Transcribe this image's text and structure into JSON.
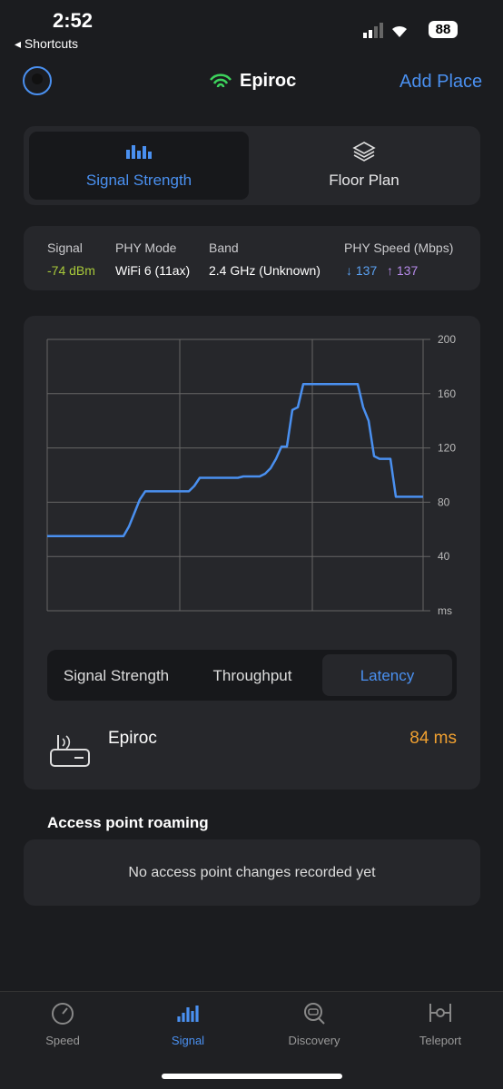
{
  "status_bar": {
    "time": "2:52",
    "back": "Shortcuts",
    "battery": "88"
  },
  "header": {
    "network": "Epiroc",
    "action": "Add Place"
  },
  "tabs": [
    "Signal Strength",
    "Floor Plan"
  ],
  "info": {
    "columns": [
      {
        "label": "Signal",
        "value": "-74 dBm"
      },
      {
        "label": "PHY Mode",
        "value": "WiFi 6 (11ax)"
      },
      {
        "label": "Band",
        "value": "2.4 GHz (Unknown)"
      },
      {
        "label": "PHY Speed (Mbps)",
        "down": "↓ 137",
        "up": "↑ 137"
      }
    ]
  },
  "chart_data": {
    "type": "line",
    "series": [
      {
        "name": "Latency",
        "color": "#4a90f0",
        "values": [
          55,
          55,
          55,
          55,
          55,
          55,
          55,
          55,
          55,
          55,
          55,
          55,
          55,
          55,
          55,
          62,
          72,
          82,
          88,
          88,
          88,
          88,
          88,
          88,
          88,
          88,
          88,
          92,
          98,
          98,
          98,
          98,
          98,
          98,
          98,
          98,
          99,
          99,
          99,
          99,
          101,
          105,
          112,
          121,
          121,
          148,
          150,
          167,
          167,
          167,
          167,
          167,
          167,
          167,
          167,
          167,
          167,
          167,
          150,
          140,
          114,
          112,
          112,
          112,
          84,
          84,
          84,
          84,
          84,
          84
        ]
      }
    ],
    "ylim": [
      0,
      200
    ],
    "yticks": [
      {
        "value": 0,
        "label": "ms"
      },
      40,
      80,
      120,
      160,
      200
    ],
    "grid": true
  },
  "metric_tabs": [
    "Signal Strength",
    "Throughput",
    "Latency"
  ],
  "current": {
    "name": "Epiroc",
    "value": "84 ms"
  },
  "roaming": {
    "title": "Access point roaming",
    "message": "No access point changes recorded yet"
  },
  "tab_bar": [
    "Speed",
    "Signal",
    "Discovery",
    "Teleport"
  ]
}
